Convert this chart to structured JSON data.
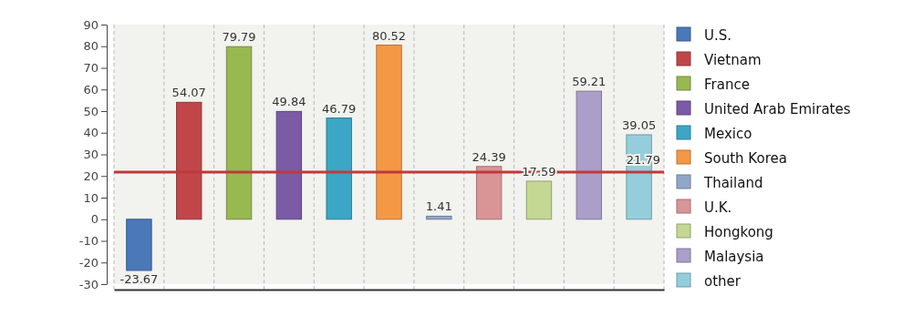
{
  "chart_data": {
    "type": "bar",
    "stacked": true,
    "categories": [
      null,
      null,
      null,
      null,
      null,
      null,
      null,
      null,
      null,
      null,
      null
    ],
    "series": [
      {
        "name": "U.S.",
        "color": "#4a78b8",
        "values": [
          -23.67,
          null,
          null,
          null,
          null,
          null,
          null,
          null,
          null,
          null,
          null
        ]
      },
      {
        "name": "Vietnam",
        "color": "#c0464a",
        "values": [
          null,
          54.07,
          null,
          null,
          null,
          null,
          null,
          null,
          null,
          null,
          null
        ]
      },
      {
        "name": "France",
        "color": "#98b852",
        "values": [
          null,
          null,
          79.79,
          null,
          null,
          null,
          null,
          null,
          null,
          null,
          null
        ]
      },
      {
        "name": "United Arab Emirates",
        "color": "#7b5aa6",
        "values": [
          null,
          null,
          null,
          49.84,
          null,
          null,
          null,
          null,
          null,
          null,
          null
        ]
      },
      {
        "name": "Mexico",
        "color": "#3ca6c6",
        "values": [
          null,
          null,
          null,
          null,
          46.79,
          null,
          null,
          null,
          null,
          null,
          null
        ]
      },
      {
        "name": "South Korea",
        "color": "#f59846",
        "values": [
          null,
          null,
          null,
          null,
          null,
          80.52,
          null,
          null,
          null,
          null,
          null
        ]
      },
      {
        "name": "Thailand",
        "color": "#8fa8c8",
        "values": [
          null,
          null,
          null,
          null,
          null,
          null,
          1.41,
          null,
          null,
          null,
          null
        ]
      },
      {
        "name": "U.K.",
        "color": "#d99496",
        "values": [
          null,
          null,
          null,
          null,
          null,
          null,
          null,
          24.39,
          null,
          null,
          null
        ]
      },
      {
        "name": "Hongkong",
        "color": "#c4d894",
        "values": [
          null,
          null,
          null,
          null,
          null,
          null,
          null,
          null,
          17.59,
          null,
          null
        ]
      },
      {
        "name": "Malaysia",
        "color": "#ab9ec8",
        "values": [
          null,
          null,
          null,
          null,
          null,
          null,
          null,
          null,
          null,
          59.21,
          null
        ]
      },
      {
        "name": "other",
        "color": "#94cedc",
        "values": [
          null,
          null,
          null,
          null,
          null,
          null,
          null,
          null,
          null,
          null,
          39.05
        ]
      }
    ],
    "ylim": [
      -30,
      90
    ],
    "yticks": [
      -30,
      -20,
      -10,
      0,
      10,
      20,
      30,
      40,
      50,
      60,
      70,
      80,
      90
    ],
    "ref_lines": [
      {
        "axis": "y",
        "value": 21.79,
        "label": "21.79",
        "color": "#c0393b"
      }
    ],
    "data_labels": true,
    "grid": "x",
    "legend": "right"
  }
}
